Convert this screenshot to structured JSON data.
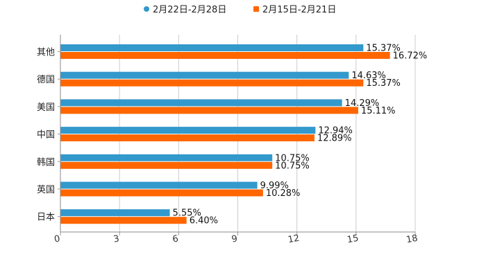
{
  "chart_data": {
    "type": "bar",
    "orientation": "horizontal",
    "title": "",
    "xlabel": "",
    "ylabel": "",
    "xlim": [
      0,
      18
    ],
    "xticks": [
      0,
      3,
      6,
      9,
      12,
      15,
      18
    ],
    "grid": true,
    "legend_position": "top-center",
    "categories": [
      "其他",
      "德国",
      "美国",
      "中国",
      "韩国",
      "英国",
      "日本"
    ],
    "series": [
      {
        "name": "2月22日-2月28日",
        "color": "#3399cc",
        "values": [
          15.37,
          14.63,
          14.29,
          12.94,
          10.75,
          9.99,
          5.55
        ],
        "labels": [
          "15.37%",
          "14.63%",
          "14.29%",
          "12.94%",
          "10.75%",
          "9.99%",
          "5.55%"
        ]
      },
      {
        "name": "2月15日-2月21日",
        "color": "#ff6600",
        "values": [
          16.72,
          15.37,
          15.11,
          12.89,
          10.75,
          10.28,
          6.4
        ],
        "labels": [
          "16.72%",
          "15.37%",
          "15.11%",
          "12.89%",
          "10.75%",
          "10.28%",
          "6.40%"
        ]
      }
    ]
  }
}
